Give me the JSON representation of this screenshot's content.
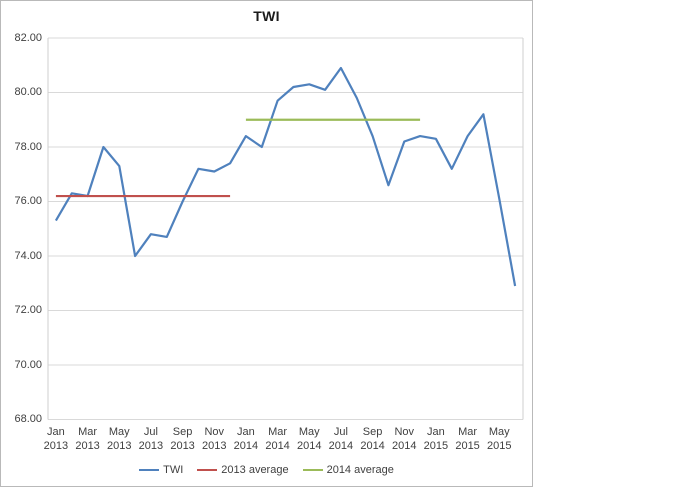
{
  "chart": {
    "border_color": "#b9b9b9",
    "background": "#ffffff",
    "gridline_color": "#d9d9d9",
    "axis_line_color": "#cfcfcf",
    "axis_text_color": "#404040",
    "title_color": "#1a1a1a"
  },
  "chart_data": {
    "type": "line",
    "title": "TWI",
    "xlabel": "",
    "ylabel": "",
    "ylim": [
      68,
      82
    ],
    "ytick_step": 2,
    "ytick_labels": [
      "82.00",
      "80.00",
      "78.00",
      "76.00",
      "74.00",
      "72.00",
      "70.00",
      "68.00"
    ],
    "x": [
      "Jan 2013",
      "Feb 2013",
      "Mar 2013",
      "Apr 2013",
      "May 2013",
      "Jun 2013",
      "Jul 2013",
      "Aug 2013",
      "Sep 2013",
      "Oct 2013",
      "Nov 2013",
      "Dec 2013",
      "Jan 2014",
      "Feb 2014",
      "Mar 2014",
      "Apr 2014",
      "May 2014",
      "Jun 2014",
      "Jul 2014",
      "Aug 2014",
      "Sep 2014",
      "Oct 2014",
      "Nov 2014",
      "Dec 2014",
      "Jan 2015",
      "Feb 2015",
      "Mar 2015",
      "Apr 2015",
      "May 2015",
      "Jun 2015"
    ],
    "x_tick_labels_shown": [
      "Jan 2013",
      "Mar 2013",
      "May 2013",
      "Jul 2013",
      "Sep 2013",
      "Nov 2013",
      "Jan 2014",
      "Mar 2014",
      "May 2014",
      "Jul 2014",
      "Sep 2014",
      "Nov 2014",
      "Jan 2015",
      "Mar 2015",
      "May 2015"
    ],
    "grid": true,
    "legend_position": "bottom",
    "series": [
      {
        "name": "TWI",
        "color": "#4F81BD",
        "values": [
          75.3,
          76.3,
          76.2,
          78.0,
          77.3,
          74.0,
          74.8,
          74.7,
          76.0,
          77.2,
          77.1,
          77.4,
          78.4,
          78.0,
          79.7,
          80.2,
          80.3,
          80.1,
          80.9,
          79.8,
          78.4,
          76.6,
          78.2,
          78.4,
          78.3,
          77.2,
          78.4,
          79.2,
          76.1,
          72.9
        ]
      },
      {
        "name": "2013 average",
        "color": "#C0504D",
        "value": 76.2,
        "from_index": 0,
        "to_index": 11
      },
      {
        "name": "2014 average",
        "color": "#9BBB59",
        "value": 79.0,
        "from_index": 12,
        "to_index": 23
      }
    ]
  },
  "legend": {
    "items": [
      {
        "label": "TWI",
        "color": "#4F81BD"
      },
      {
        "label": "2013 average",
        "color": "#C0504D"
      },
      {
        "label": "2014 average",
        "color": "#9BBB59"
      }
    ]
  }
}
